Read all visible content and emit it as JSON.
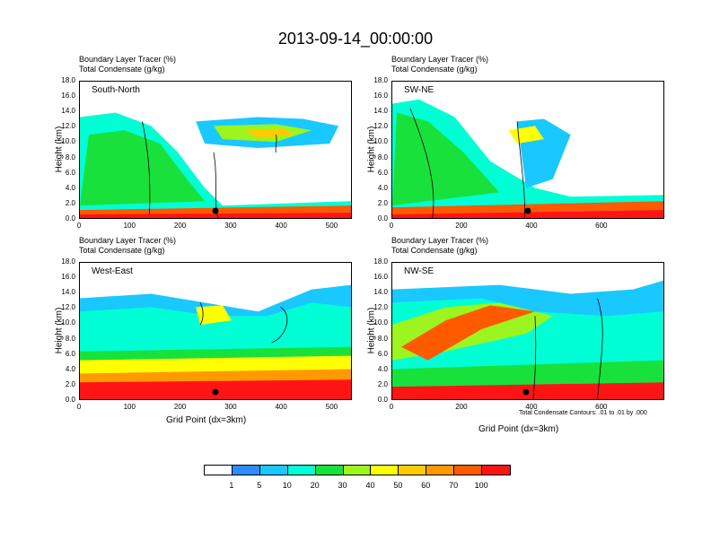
{
  "title": "2013-09-14_00:00:00",
  "panel_header": {
    "line1": "Boundary Layer Tracer   (%)",
    "line2": "Total Condensate   (g/kg)"
  },
  "ylabel": "Height (km)",
  "xlabel": "Grid Point (dx=3km)",
  "contour_note": "Total Condensate Contours: .01 to .01 by .000",
  "chart_data": [
    {
      "type": "heatmap",
      "name": "South-North",
      "xlim": [
        0,
        540
      ],
      "ylim": [
        0,
        18
      ],
      "xticks": [
        "0",
        "100",
        "200",
        "300",
        "400",
        "500"
      ],
      "yticks": [
        "0.0",
        "2.0",
        "4.0",
        "6.0",
        "8.0",
        "10.0",
        "12.0",
        "14.0",
        "16.0",
        "18.0"
      ],
      "xlabel": "",
      "ylabel": "Height (km)"
    },
    {
      "type": "heatmap",
      "name": "SW-NE",
      "xlim": [
        0,
        780
      ],
      "ylim": [
        0,
        18
      ],
      "xticks": [
        "0",
        "200",
        "400",
        "600"
      ],
      "yticks": [
        "0.0",
        "2.0",
        "4.0",
        "6.0",
        "8.0",
        "10.0",
        "12.0",
        "14.0",
        "16.0",
        "18.0"
      ],
      "xlabel": "",
      "ylabel": "Height (km)"
    },
    {
      "type": "heatmap",
      "name": "West-East",
      "xlim": [
        0,
        540
      ],
      "ylim": [
        0,
        18
      ],
      "xticks": [
        "0",
        "100",
        "200",
        "300",
        "400",
        "500"
      ],
      "yticks": [
        "0.0",
        "2.0",
        "4.0",
        "6.0",
        "8.0",
        "10.0",
        "12.0",
        "14.0",
        "16.0",
        "18.0"
      ],
      "xlabel": "Grid Point (dx=3km)",
      "ylabel": "Height (km)"
    },
    {
      "type": "heatmap",
      "name": "NW-SE",
      "xlim": [
        0,
        780
      ],
      "ylim": [
        0,
        18
      ],
      "xticks": [
        "0",
        "200",
        "400",
        "600"
      ],
      "yticks": [
        "0.0",
        "2.0",
        "4.0",
        "6.0",
        "8.0",
        "10.0",
        "12.0",
        "14.0",
        "16.0",
        "18.0"
      ],
      "xlabel": "Grid Point (dx=3km)",
      "ylabel": "Height (km)"
    }
  ],
  "colorbar": {
    "labels": [
      "1",
      "5",
      "10",
      "20",
      "30",
      "40",
      "50",
      "60",
      "70",
      "100"
    ],
    "colors": [
      "#ffffff",
      "#2f8cff",
      "#19c8ff",
      "#00ffd4",
      "#19e13c",
      "#9cf51e",
      "#ffff00",
      "#ffcc00",
      "#ff9900",
      "#ff5a00",
      "#ff1414"
    ]
  }
}
